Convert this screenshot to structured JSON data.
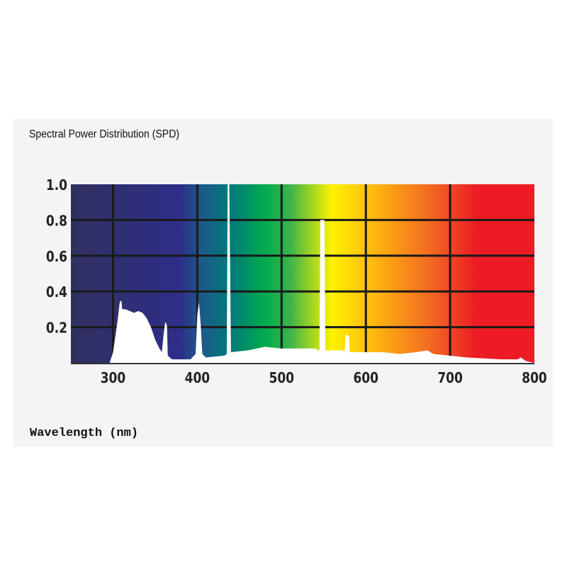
{
  "chart_data": {
    "type": "area",
    "title": "Spectral Power Distribution (SPD)",
    "xlabel": "Wavelength (nm)",
    "ylabel": "",
    "xlim": [
      250,
      800
    ],
    "ylim": [
      0,
      1.0
    ],
    "grid": true,
    "background": "visible spectrum color gradient",
    "xticks": [
      "300",
      "400",
      "500",
      "600",
      "700",
      "800"
    ],
    "yticks": [
      "0.2",
      "0.4",
      "0.6",
      "0.8",
      "1.0"
    ],
    "series": [
      {
        "color": "#ffffff",
        "points": [
          [
            250,
            0
          ],
          [
            296,
            0
          ],
          [
            300,
            0.06
          ],
          [
            305,
            0.22
          ],
          [
            308,
            0.34
          ],
          [
            310,
            0.35
          ],
          [
            311,
            0.3
          ],
          [
            315,
            0.3
          ],
          [
            320,
            0.29
          ],
          [
            325,
            0.28
          ],
          [
            330,
            0.29
          ],
          [
            335,
            0.28
          ],
          [
            340,
            0.25
          ],
          [
            345,
            0.2
          ],
          [
            350,
            0.13
          ],
          [
            355,
            0.08
          ],
          [
            358,
            0.06
          ],
          [
            360,
            0.16
          ],
          [
            362,
            0.23
          ],
          [
            364,
            0.21
          ],
          [
            365,
            0.04
          ],
          [
            370,
            0.02
          ],
          [
            392,
            0.02
          ],
          [
            398,
            0.05
          ],
          [
            400,
            0.27
          ],
          [
            402,
            0.34
          ],
          [
            404,
            0.22
          ],
          [
            406,
            0.05
          ],
          [
            410,
            0.03
          ],
          [
            432,
            0.04
          ],
          [
            435,
            0.05
          ],
          [
            436,
            1.0
          ],
          [
            438,
            1.0
          ],
          [
            440,
            0.06
          ],
          [
            460,
            0.07
          ],
          [
            480,
            0.09
          ],
          [
            500,
            0.08
          ],
          [
            540,
            0.08
          ],
          [
            545,
            0.07
          ],
          [
            546,
            0.8
          ],
          [
            551,
            0.8
          ],
          [
            552,
            0.07
          ],
          [
            575,
            0.07
          ],
          [
            576,
            0.16
          ],
          [
            580,
            0.15
          ],
          [
            581,
            0.06
          ],
          [
            620,
            0.06
          ],
          [
            640,
            0.05
          ],
          [
            660,
            0.06
          ],
          [
            673,
            0.07
          ],
          [
            680,
            0.05
          ],
          [
            700,
            0.04
          ],
          [
            720,
            0.03
          ],
          [
            760,
            0.02
          ],
          [
            780,
            0.02
          ],
          [
            784,
            0.03
          ],
          [
            790,
            0.01
          ],
          [
            800,
            0
          ]
        ]
      }
    ],
    "gradient_stops": [
      [
        "250",
        "#30305e"
      ],
      [
        "380",
        "#2e2e8a"
      ],
      [
        "405",
        "#1c5a8a"
      ],
      [
        "440",
        "#007a7a"
      ],
      [
        "480",
        "#00ab4e"
      ],
      [
        "510",
        "#3cb44a"
      ],
      [
        "560",
        "#fff200"
      ],
      [
        "600",
        "#ffc20e"
      ],
      [
        "680",
        "#f26522"
      ],
      [
        "730",
        "#ed1c24"
      ],
      [
        "800",
        "#ed1c24"
      ]
    ]
  }
}
